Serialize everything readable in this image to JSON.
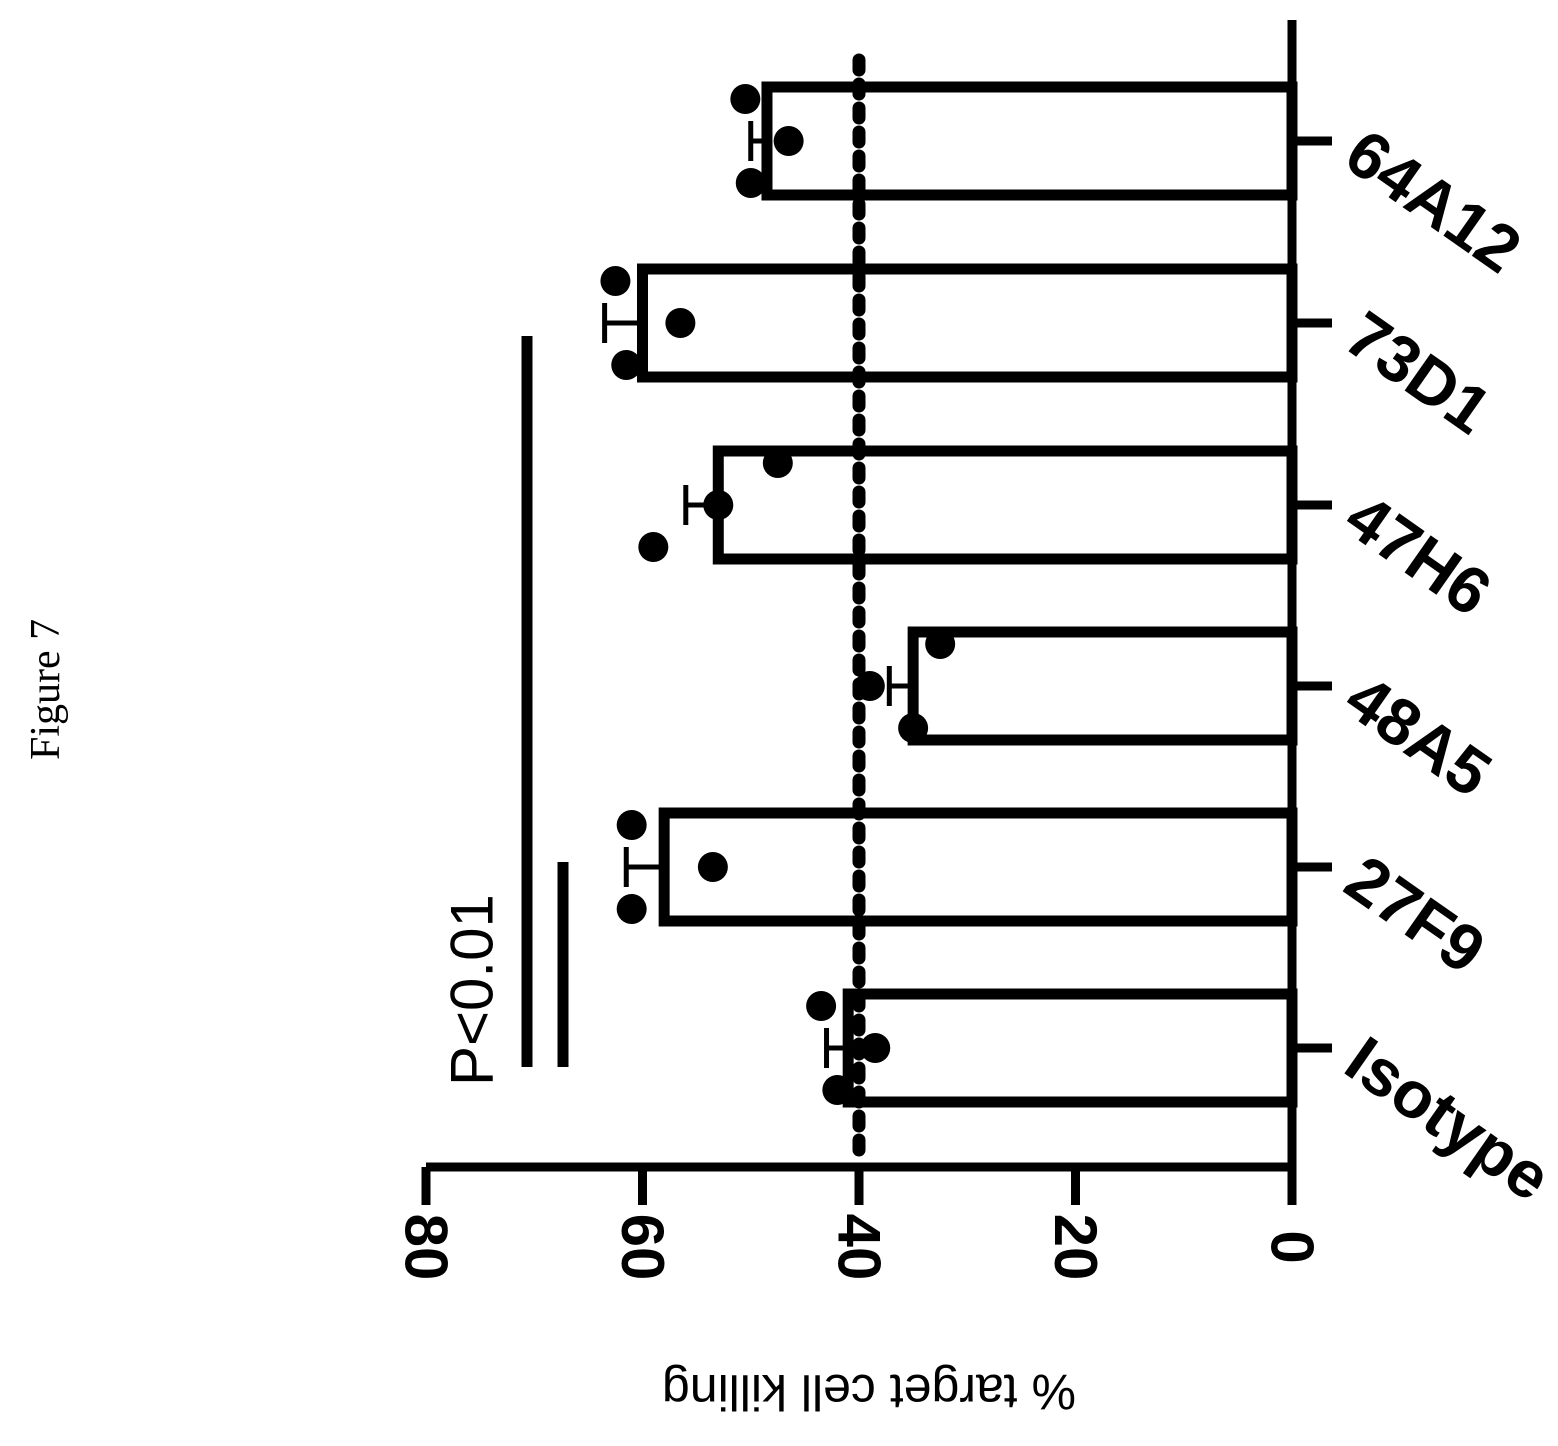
{
  "figure_label": "Figure 7",
  "chart_data": {
    "type": "bar",
    "title": "",
    "xlabel": "",
    "ylabel": "% target cell killing",
    "ylim": [
      0,
      80
    ],
    "yticks": [
      "0",
      "20",
      "40",
      "60",
      "80"
    ],
    "categories": [
      "Isotype",
      "27F9",
      "48A5",
      "47H6",
      "73D1",
      "64A12"
    ],
    "values": [
      41,
      58,
      35,
      53,
      60,
      48.5
    ],
    "error": [
      2.0,
      3.5,
      2.2,
      3.0,
      3.5,
      1.5
    ],
    "points": [
      [
        43.5,
        38.5,
        42
      ],
      [
        61,
        53.5,
        61
      ],
      [
        32.5,
        39,
        35
      ],
      [
        47.5,
        53,
        59
      ],
      [
        62.5,
        56.5,
        61.5
      ],
      [
        50.5,
        46.5,
        50
      ]
    ],
    "reference_line": 40,
    "annotations": {
      "significance_label": "P<0.01",
      "significance_value": 0.01
    }
  }
}
